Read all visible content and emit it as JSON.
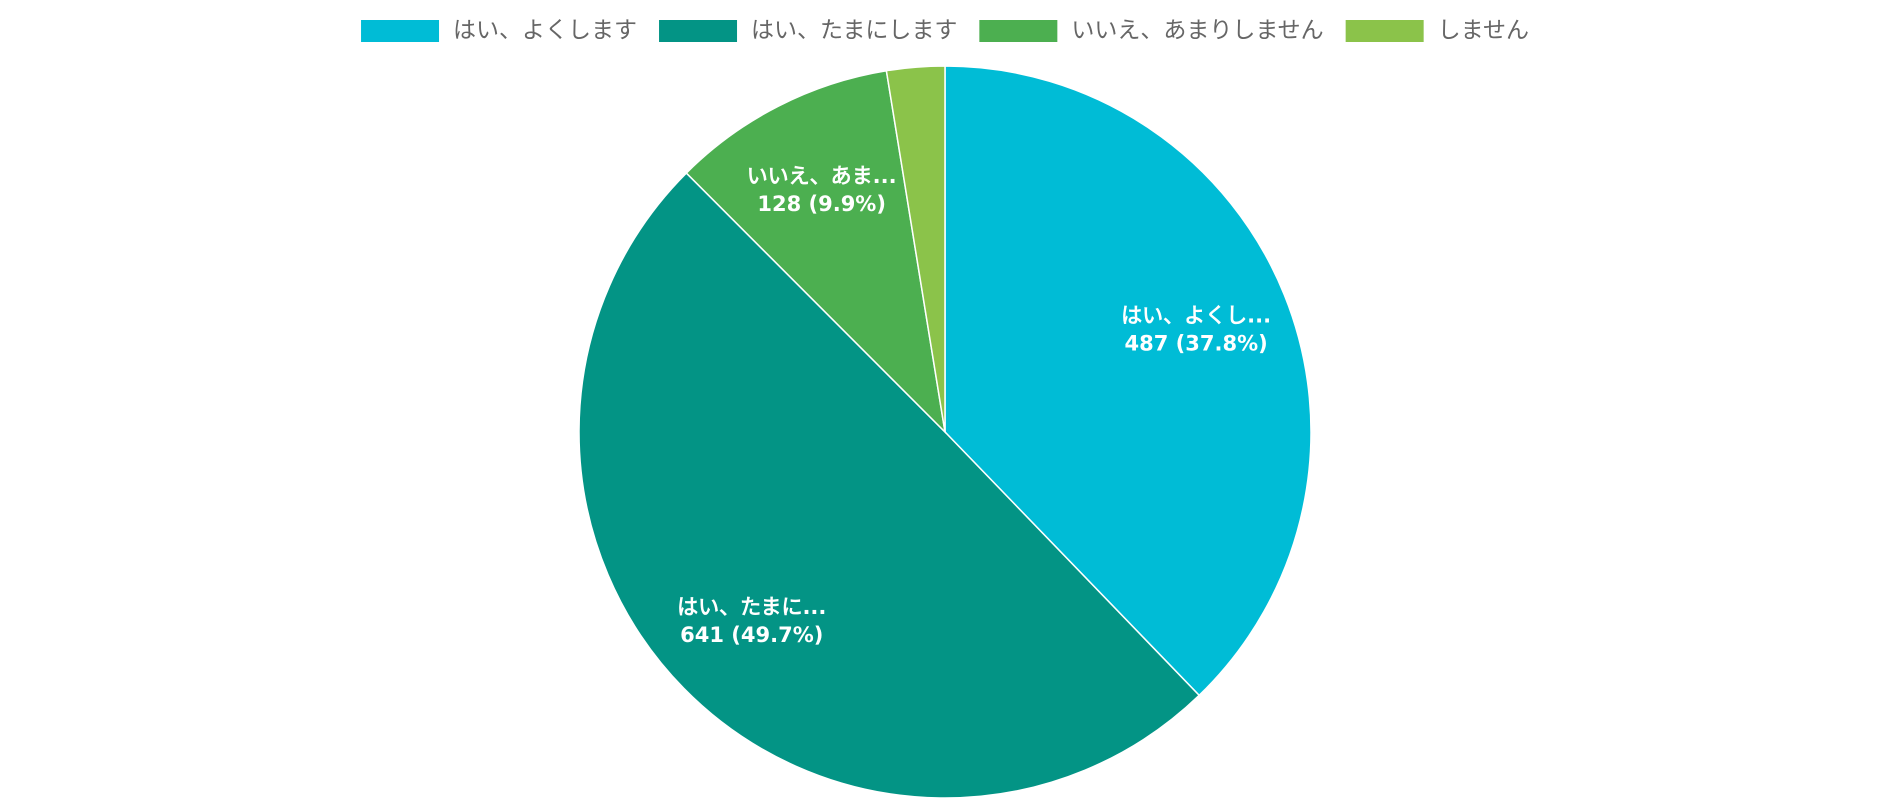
{
  "chart_data": {
    "type": "pie",
    "categories": [
      "はい、よくします",
      "はい、たまにします",
      "いいえ、あまりしません",
      "しません"
    ],
    "values": [
      487,
      641,
      128,
      33
    ],
    "data_labels": [
      "はい、よくし...",
      "はい、たまに...",
      "いいえ、あま...",
      null
    ],
    "value_labels": [
      "487 (37.8%)",
      "641 (49.7%)",
      "128 (9.9%)",
      null
    ],
    "colors": [
      "#00bcd6",
      "#039485",
      "#4caf50",
      "#8bc34a"
    ],
    "legend": "top"
  }
}
